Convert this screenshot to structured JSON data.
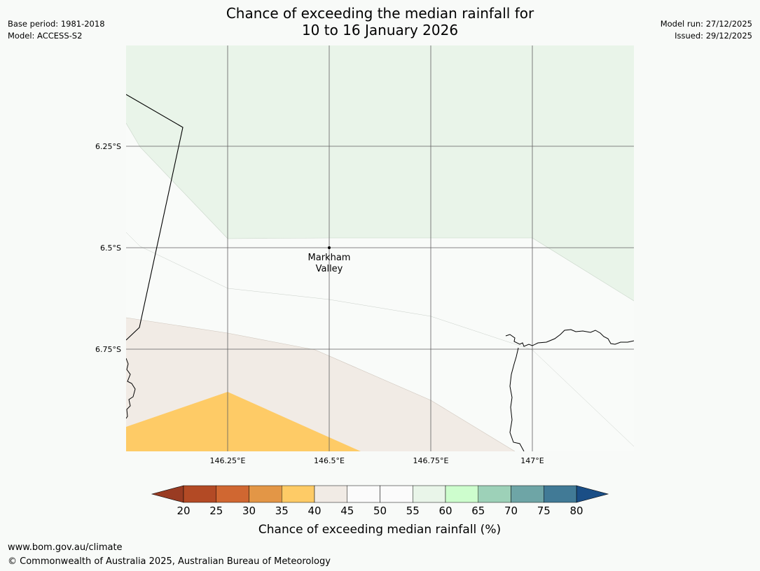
{
  "title": {
    "line1": "Chance of exceeding the median rainfall for",
    "line2": "10 to 16 January 2026"
  },
  "header_left": {
    "base_period": "Base period: 1981-2018",
    "model": "Model: ACCESS-S2"
  },
  "header_right": {
    "model_run": "Model run: 27/12/2025",
    "issued": "Issued: 29/12/2025"
  },
  "map": {
    "lat_labels": [
      "6.25°S",
      "6.5°S",
      "6.75°S"
    ],
    "lon_labels": [
      "146.25°E",
      "146.5°E",
      "146.75°E",
      "147°E"
    ],
    "place": {
      "name_line1": "Markham",
      "name_line2": "Valley"
    }
  },
  "legend": {
    "ticks": [
      "20",
      "25",
      "30",
      "35",
      "40",
      "45",
      "50",
      "55",
      "60",
      "65",
      "70",
      "75",
      "80"
    ],
    "under_color": "#993b22",
    "over_color": "#1a4e86",
    "colors": [
      "#b34a25",
      "#d06731",
      "#e39646",
      "#fecb66",
      "#f1ebe5",
      "#fbfbfb",
      "#fbfbfb",
      "#e9f5e9",
      "#cdfdcd",
      "#9dd1b8",
      "#6ea5a6",
      "#417a96"
    ],
    "label": "Chance of exceeding median rainfall (%)"
  },
  "footer": {
    "url": "www.bom.gov.au/climate",
    "copyright": "© Commonwealth of Australia 2025, Australian Bureau of Meteorology"
  }
}
